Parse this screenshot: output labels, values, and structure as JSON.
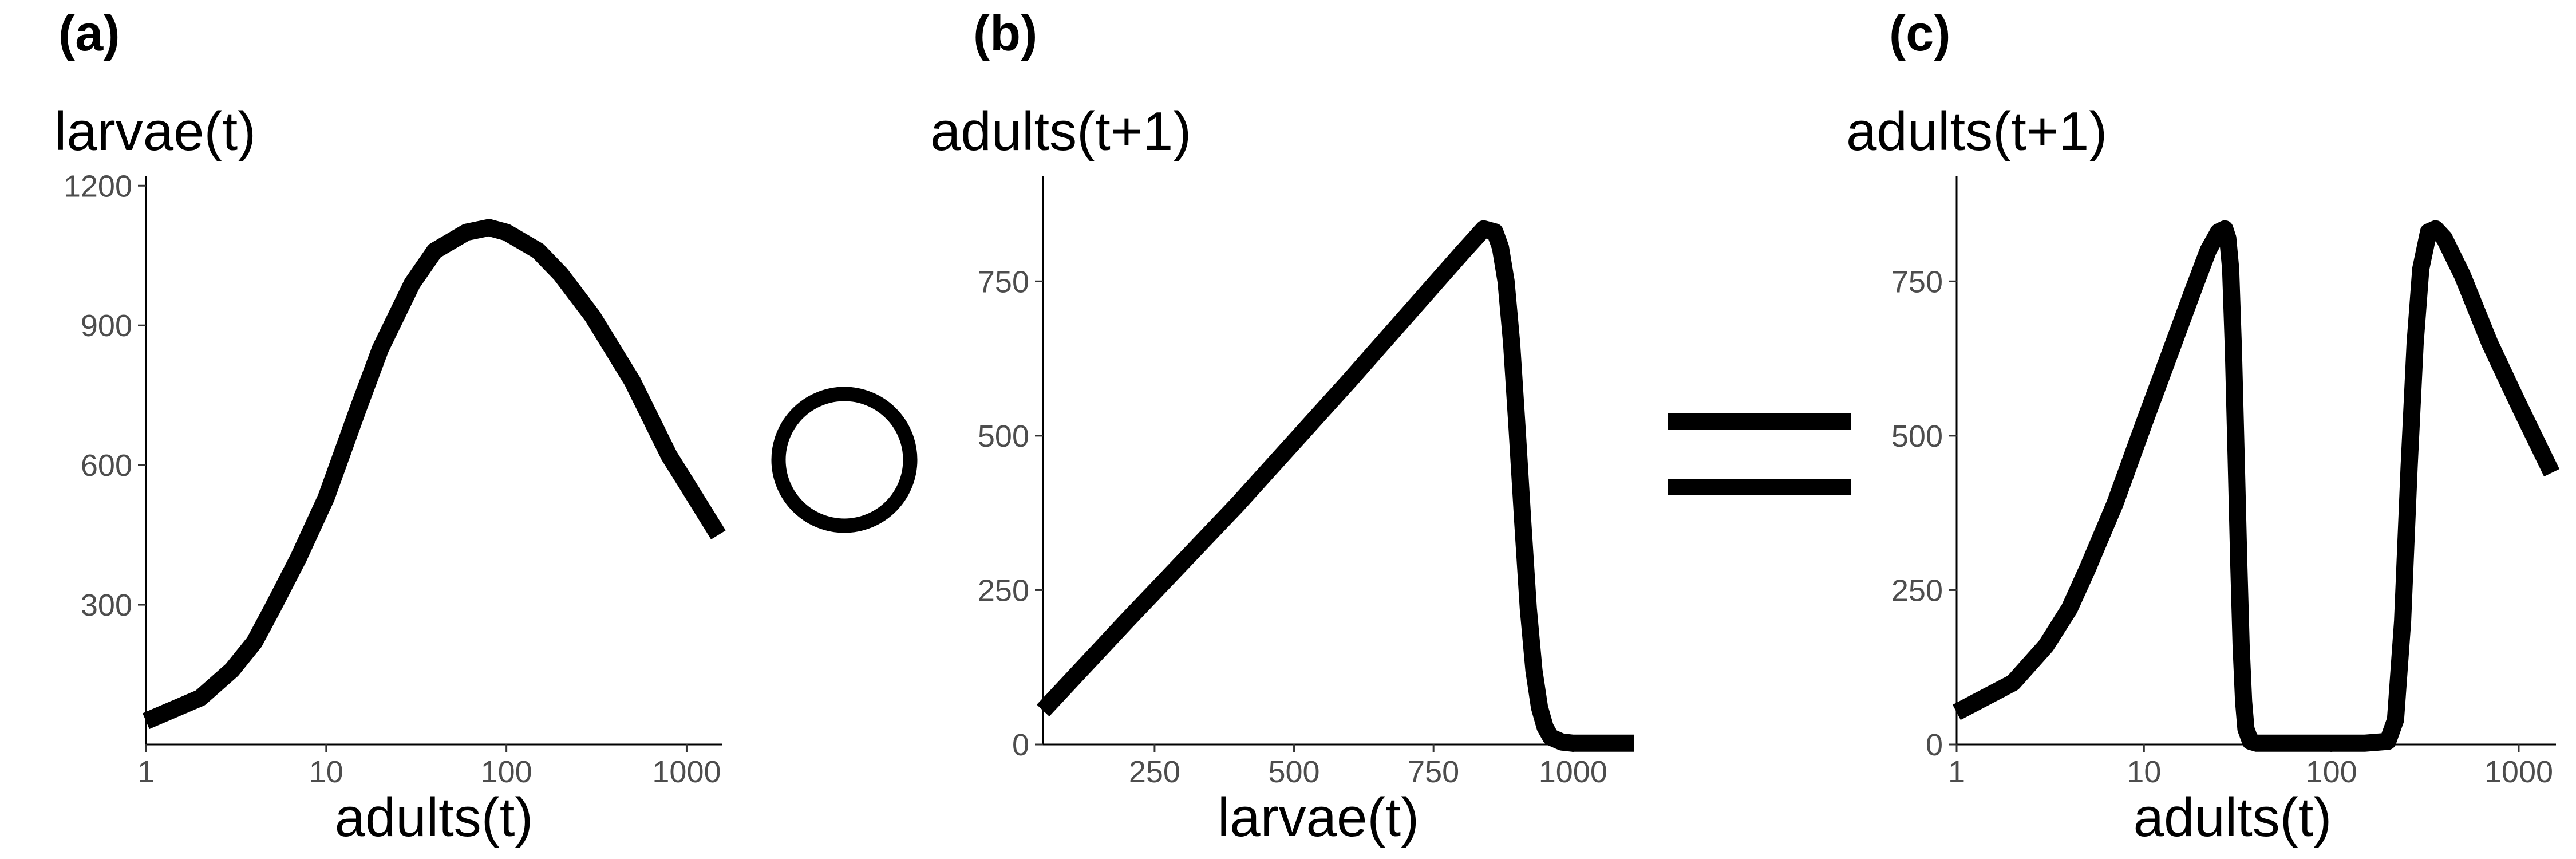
{
  "operators": {
    "compose": "∘",
    "equals": "="
  },
  "chart_data": [
    {
      "type": "line",
      "panel_label": "(a)",
      "title": "",
      "xlabel": "adults(t)",
      "ylabel": "larvae(t)",
      "x_scale": "log10",
      "xlim": [
        1,
        1580
      ],
      "ylim": [
        0,
        1220
      ],
      "x_ticks": [
        1,
        10,
        100,
        1000
      ],
      "x_tick_labels": [
        "1",
        "10",
        "100",
        "1000"
      ],
      "y_ticks": [
        300,
        600,
        900,
        1200
      ],
      "y_tick_labels": [
        "300",
        "600",
        "900",
        "1200"
      ],
      "grid": false,
      "legend": "none",
      "series": [
        {
          "x": [
            1,
            2,
            3,
            4,
            5,
            7,
            10,
            15,
            20,
            30,
            40,
            60,
            80,
            100,
            150,
            200,
            300,
            500,
            800,
            1000,
            1500
          ],
          "y": [
            50,
            100,
            160,
            220,
            290,
            400,
            530,
            720,
            850,
            990,
            1060,
            1100,
            1110,
            1100,
            1060,
            1010,
            920,
            780,
            620,
            560,
            450
          ]
        }
      ]
    },
    {
      "type": "line",
      "panel_label": "(b)",
      "title": "",
      "xlabel": "larvae(t)",
      "ylabel": "adults(t+1)",
      "x_scale": "linear",
      "xlim": [
        50,
        1110
      ],
      "ylim": [
        0,
        920
      ],
      "x_ticks": [
        250,
        500,
        750,
        1000
      ],
      "x_tick_labels": [
        "250",
        "500",
        "750",
        "1000"
      ],
      "y_ticks": [
        0,
        250,
        500,
        750
      ],
      "y_tick_labels": [
        "0",
        "250",
        "500",
        "750"
      ],
      "grid": false,
      "legend": "none",
      "series": [
        {
          "x": [
            50,
            200,
            400,
            600,
            800,
            840,
            860,
            870,
            880,
            890,
            900,
            910,
            920,
            930,
            940,
            950,
            960,
            980,
            1000,
            1050,
            1110
          ],
          "y": [
            55,
            200,
            390,
            590,
            795,
            835,
            830,
            805,
            750,
            650,
            510,
            360,
            220,
            120,
            60,
            28,
            12,
            4,
            2,
            2,
            2
          ]
        }
      ]
    },
    {
      "type": "line",
      "panel_label": "(c)",
      "title": "",
      "xlabel": "adults(t)",
      "ylabel": "adults(t+1)",
      "x_scale": "log10",
      "xlim": [
        1,
        1580
      ],
      "ylim": [
        0,
        920
      ],
      "x_ticks": [
        1,
        10,
        100,
        1000
      ],
      "x_tick_labels": [
        "1",
        "10",
        "100",
        "1000"
      ],
      "y_ticks": [
        0,
        250,
        500,
        750
      ],
      "y_tick_labels": [
        "0",
        "250",
        "500",
        "750"
      ],
      "grid": false,
      "legend": "none",
      "series": [
        {
          "x": [
            1,
            2,
            3,
            4,
            5,
            7,
            10,
            14,
            18,
            22,
            25,
            27,
            28,
            29,
            30,
            31,
            32,
            33,
            34,
            35,
            37,
            40,
            60,
            100,
            150,
            200,
            220,
            240,
            260,
            280,
            300,
            330,
            360,
            400,
            500,
            700,
            1000,
            1500
          ],
          "y": [
            52,
            100,
            160,
            220,
            285,
            390,
            520,
            640,
            730,
            800,
            830,
            835,
            820,
            770,
            640,
            470,
            300,
            160,
            70,
            25,
            5,
            2,
            2,
            2,
            2,
            5,
            40,
            200,
            450,
            650,
            770,
            830,
            835,
            820,
            760,
            650,
            550,
            440
          ]
        }
      ]
    }
  ]
}
